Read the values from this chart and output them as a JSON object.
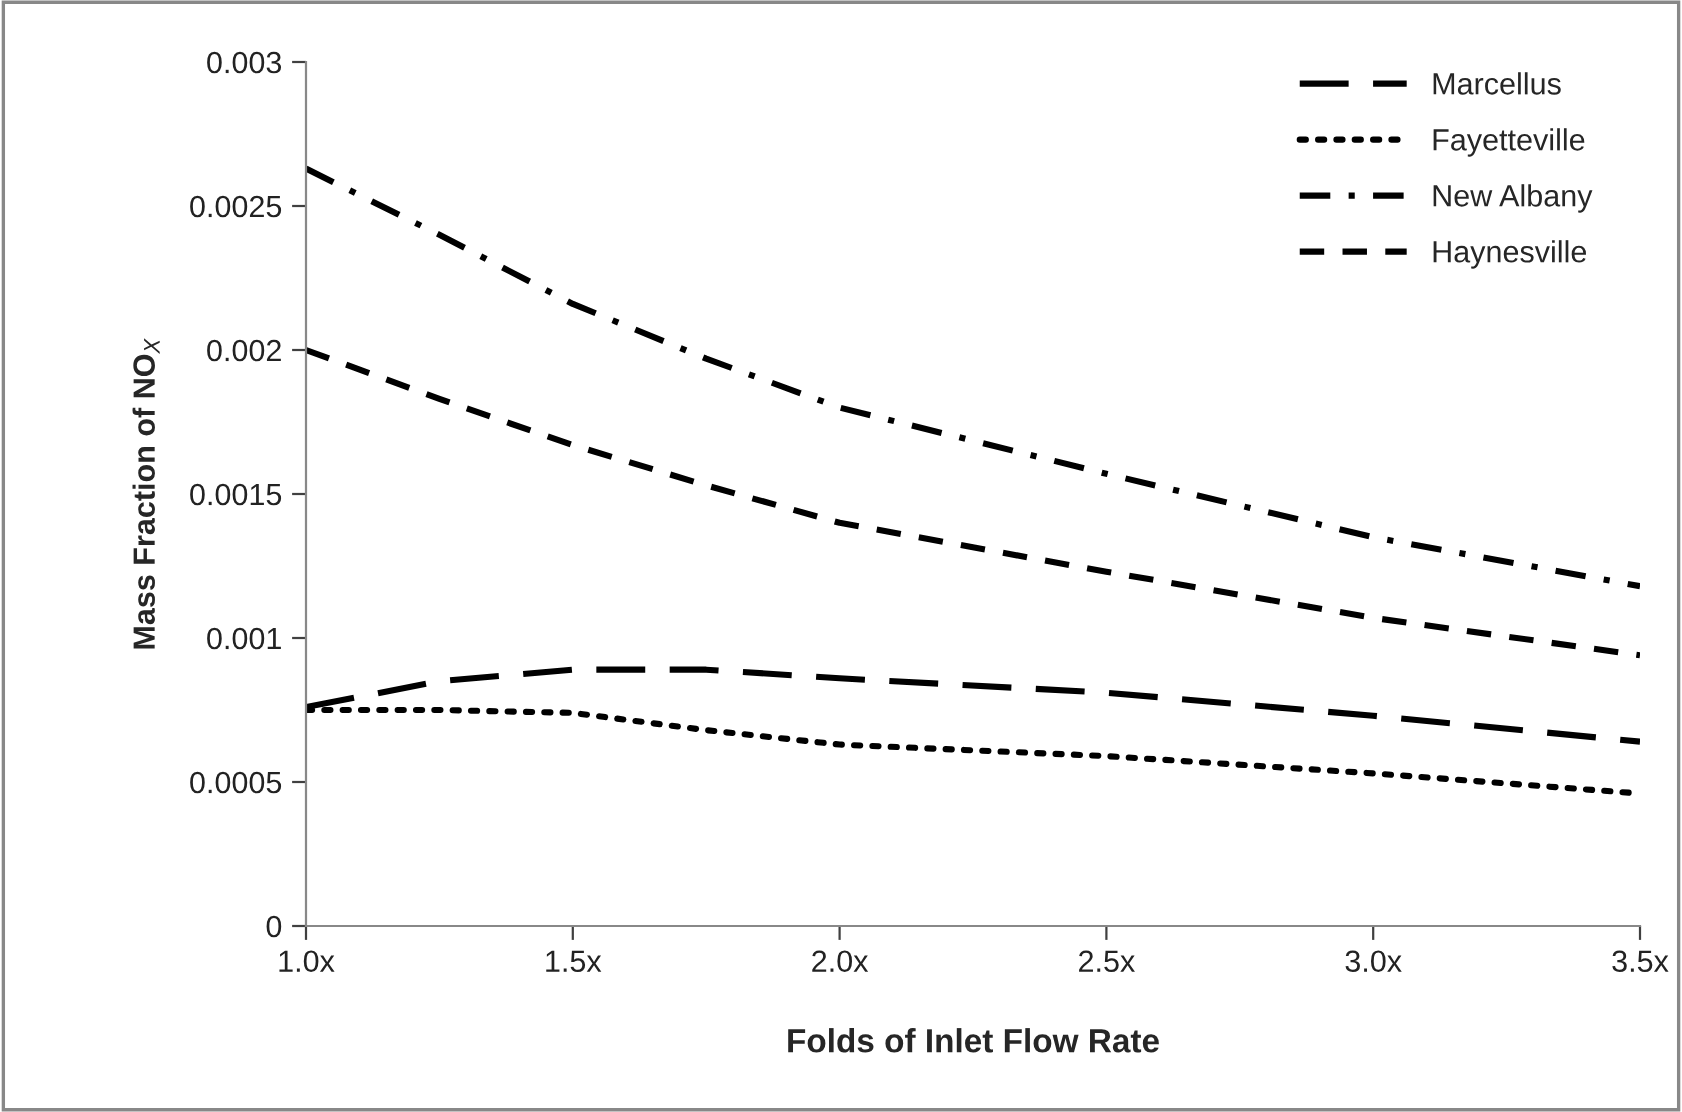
{
  "chart_data": {
    "type": "line",
    "xlabel": "Folds of Inlet Flow Rate",
    "ylabel": "Mass Fraction of NO$_{X}$",
    "x": [
      1.0,
      1.25,
      1.5,
      1.75,
      2.0,
      2.5,
      3.0,
      3.5
    ],
    "series": [
      {
        "name": "Marcellus",
        "color": "#000000",
        "line_style": "longdash",
        "values": [
          0.00076,
          0.00085,
          0.00089,
          0.00089,
          0.00086,
          0.00081,
          0.00073,
          0.00064
        ]
      },
      {
        "name": "Fayetteville",
        "color": "#000000",
        "line_style": "dotted",
        "values": [
          0.00075,
          0.00075,
          0.00074,
          0.00068,
          0.00063,
          0.00059,
          0.00053,
          0.00046
        ]
      },
      {
        "name": "New Albany",
        "color": "#000000",
        "line_style": "dashdot",
        "values": [
          0.00263,
          0.0024,
          0.00216,
          0.00197,
          0.0018,
          0.00157,
          0.00135,
          0.00118
        ]
      },
      {
        "name": "Haynesville",
        "color": "#000000",
        "line_style": "dashed",
        "values": [
          0.002,
          0.00183,
          0.00167,
          0.00153,
          0.0014,
          0.00123,
          0.00107,
          0.00094
        ]
      }
    ],
    "xlim": [
      1.0,
      3.5
    ],
    "xticks": [
      {
        "value": 1.0,
        "label": "1.0x"
      },
      {
        "value": 1.5,
        "label": "1.5x"
      },
      {
        "value": 2.0,
        "label": "2.0x"
      },
      {
        "value": 2.5,
        "label": "2.5x"
      },
      {
        "value": 3.0,
        "label": "3.0x"
      },
      {
        "value": 3.5,
        "label": "3.5x"
      }
    ],
    "ylim": [
      0,
      0.003
    ],
    "yticks": [
      0,
      0.0005,
      0.001,
      0.0015,
      0.002,
      0.0025,
      0.003
    ],
    "grid": false,
    "legend": "top right",
    "marker": "none"
  }
}
